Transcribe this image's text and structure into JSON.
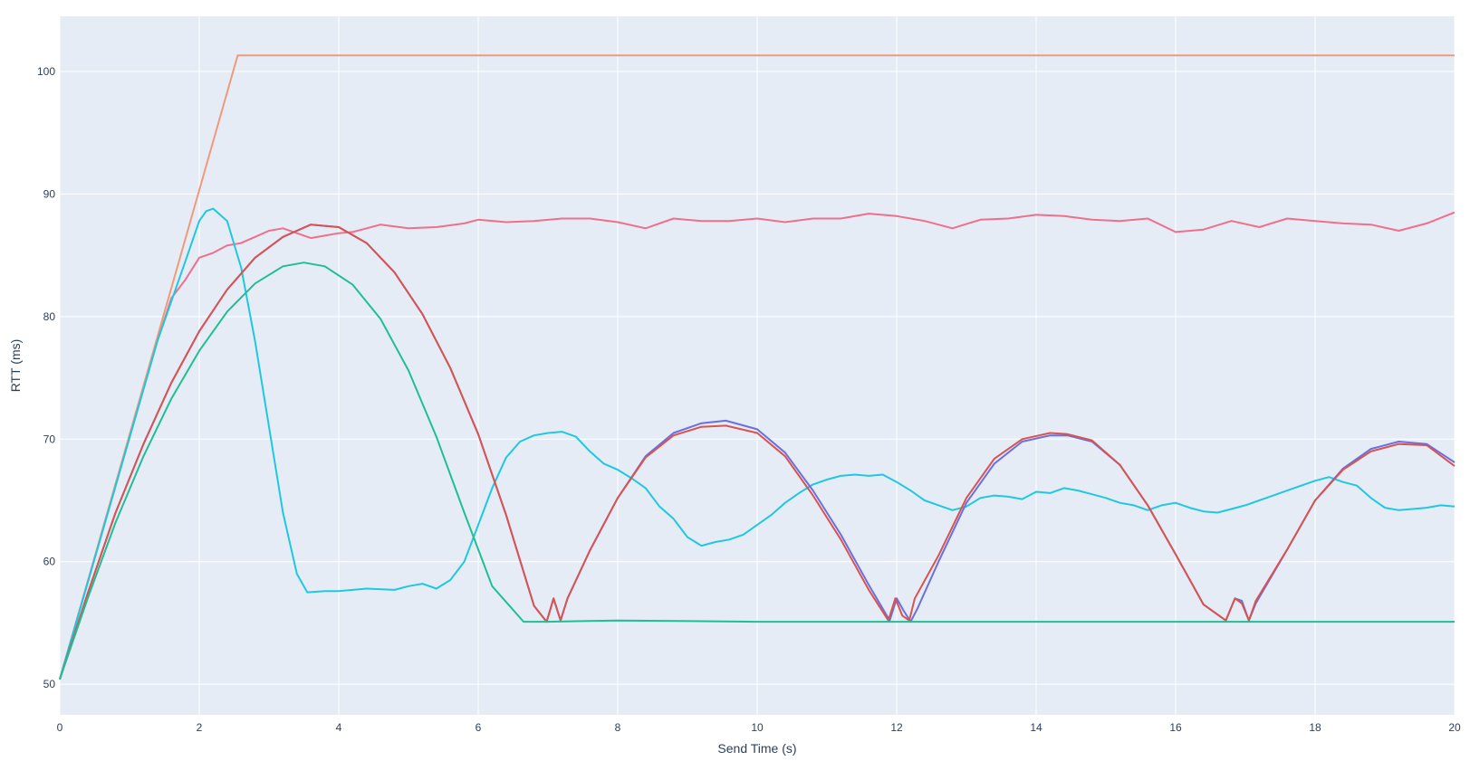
{
  "chart_data": {
    "type": "line",
    "title": "",
    "xlabel": "Send Time (s)",
    "ylabel": "RTT (ms)",
    "xlim": [
      0,
      20
    ],
    "ylim": [
      47.5,
      104.5
    ],
    "xticks": [
      0,
      2,
      4,
      6,
      8,
      10,
      12,
      14,
      16,
      18,
      20
    ],
    "yticks": [
      50,
      60,
      70,
      80,
      90,
      100
    ],
    "grid": true,
    "legend": "none",
    "plot_bg": "#e5ecf6",
    "series": [
      {
        "color": "#ef9a7a",
        "x": [
          0,
          2.55,
          20
        ],
        "y": [
          50.4,
          101.3,
          101.3
        ]
      },
      {
        "color": "#ef6f8c",
        "x": [
          0,
          1.4,
          1.6,
          1.8,
          2.0,
          2.2,
          2.4,
          2.6,
          2.8,
          3.0,
          3.2,
          3.4,
          3.6,
          3.8,
          4.0,
          4.2,
          4.4,
          4.6,
          5.0,
          5.4,
          5.8,
          6.0,
          6.4,
          6.8,
          7.2,
          7.6,
          8.0,
          8.4,
          8.8,
          9.2,
          9.6,
          10.0,
          10.4,
          10.8,
          11.2,
          11.6,
          12.0,
          12.4,
          12.8,
          13.2,
          13.6,
          14.0,
          14.4,
          14.8,
          15.2,
          15.6,
          16.0,
          16.4,
          16.8,
          17.2,
          17.6,
          18.0,
          18.4,
          18.8,
          19.2,
          19.6,
          20.0
        ],
        "y": [
          50.4,
          78.0,
          81.5,
          83.0,
          84.8,
          85.2,
          85.8,
          86.0,
          86.5,
          87.0,
          87.2,
          86.8,
          86.4,
          86.6,
          86.8,
          86.9,
          87.2,
          87.5,
          87.2,
          87.3,
          87.6,
          87.9,
          87.7,
          87.8,
          88.0,
          88.0,
          87.7,
          87.2,
          88.0,
          87.8,
          87.8,
          88.0,
          87.7,
          88.0,
          88.0,
          88.4,
          88.2,
          87.8,
          87.2,
          87.9,
          88.0,
          88.3,
          88.2,
          87.9,
          87.8,
          88.0,
          86.9,
          87.1,
          87.8,
          87.3,
          88.0,
          87.8,
          87.6,
          87.5,
          87.0,
          87.6,
          88.5
        ]
      },
      {
        "color": "#1fc8e0",
        "x": [
          0,
          1.4,
          1.8,
          2.0,
          2.1,
          2.2,
          2.4,
          2.6,
          2.8,
          3.0,
          3.2,
          3.4,
          3.55,
          3.8,
          4.0,
          4.4,
          4.8,
          5.0,
          5.2,
          5.4,
          5.6,
          5.8,
          6.0,
          6.2,
          6.4,
          6.6,
          6.8,
          7.0,
          7.2,
          7.4,
          7.6,
          7.8,
          8.0,
          8.2,
          8.4,
          8.6,
          8.8,
          9.0,
          9.2,
          9.4,
          9.6,
          9.8,
          10.0,
          10.2,
          10.4,
          10.6,
          10.8,
          11.0,
          11.2,
          11.4,
          11.6,
          11.8,
          12.0,
          12.2,
          12.4,
          12.6,
          12.8,
          13.0,
          13.2,
          13.4,
          13.6,
          13.8,
          14.0,
          14.2,
          14.4,
          14.6,
          14.8,
          15.0,
          15.2,
          15.4,
          15.6,
          15.8,
          16.0,
          16.2,
          16.4,
          16.6,
          16.8,
          17.0,
          17.2,
          17.4,
          17.6,
          17.8,
          18.0,
          18.2,
          18.4,
          18.6,
          18.8,
          19.0,
          19.2,
          19.4,
          19.6,
          19.8,
          20.0
        ],
        "y": [
          50.4,
          78.0,
          84.5,
          87.8,
          88.6,
          88.8,
          87.8,
          84.0,
          78.0,
          71.0,
          64.0,
          59.0,
          57.5,
          57.6,
          57.6,
          57.8,
          57.7,
          58.0,
          58.2,
          57.8,
          58.5,
          60.0,
          63.0,
          66.0,
          68.5,
          69.8,
          70.3,
          70.5,
          70.6,
          70.2,
          69.0,
          68.0,
          67.5,
          66.8,
          66.0,
          64.5,
          63.5,
          62.0,
          61.3,
          61.6,
          61.8,
          62.2,
          63.0,
          63.8,
          64.8,
          65.6,
          66.3,
          66.7,
          67.0,
          67.1,
          67.0,
          67.1,
          66.5,
          65.8,
          65.0,
          64.6,
          64.2,
          64.5,
          65.2,
          65.4,
          65.3,
          65.1,
          65.7,
          65.6,
          66.0,
          65.8,
          65.5,
          65.2,
          64.8,
          64.6,
          64.2,
          64.6,
          64.8,
          64.4,
          64.1,
          64.0,
          64.3,
          64.6,
          65.0,
          65.4,
          65.8,
          66.2,
          66.6,
          66.9,
          66.5,
          66.2,
          65.2,
          64.4,
          64.2,
          64.3,
          64.4,
          64.6,
          64.5
        ]
      },
      {
        "color": "#6b6fe0",
        "x": [
          0,
          0.4,
          0.8,
          1.2,
          1.6,
          2.0,
          2.4,
          2.8,
          3.2,
          3.6,
          4.0,
          4.4,
          4.8,
          5.2,
          5.6,
          6.0,
          6.4,
          6.8,
          6.98,
          7.08,
          7.18,
          7.28,
          7.6,
          8.0,
          8.4,
          8.8,
          9.2,
          9.55,
          10.0,
          10.4,
          10.8,
          11.2,
          11.6,
          11.9,
          12.0,
          12.1,
          12.2,
          12.3,
          12.6,
          13.0,
          13.4,
          13.8,
          14.2,
          14.45,
          14.8,
          15.2,
          15.6,
          16.0,
          16.4,
          16.72,
          16.85,
          16.95,
          17.05,
          17.15,
          17.6,
          18.0,
          18.4,
          18.8,
          19.2,
          19.6,
          20.0
        ],
        "y": [
          50.4,
          57.4,
          64.0,
          69.6,
          74.6,
          78.8,
          82.2,
          84.8,
          86.5,
          87.5,
          87.3,
          86.0,
          83.6,
          80.2,
          75.8,
          70.4,
          63.8,
          56.4,
          55.1,
          57.0,
          55.2,
          57.0,
          60.9,
          65.2,
          68.6,
          70.5,
          71.3,
          71.5,
          70.8,
          68.9,
          65.8,
          62.2,
          58.1,
          55.2,
          57.0,
          56.0,
          55.1,
          56.2,
          60.0,
          64.8,
          68.0,
          69.8,
          70.3,
          70.3,
          69.8,
          67.9,
          64.6,
          60.6,
          56.5,
          55.2,
          57.0,
          56.8,
          55.2,
          56.6,
          61.0,
          65.0,
          67.6,
          69.2,
          69.8,
          69.6,
          68.1
        ]
      },
      {
        "color": "#d9534f",
        "x": [
          0,
          0.4,
          0.8,
          1.2,
          1.6,
          2.0,
          2.4,
          2.8,
          3.2,
          3.6,
          4.0,
          4.4,
          4.8,
          5.2,
          5.6,
          6.0,
          6.4,
          6.8,
          6.98,
          7.08,
          7.18,
          7.28,
          7.6,
          8.0,
          8.4,
          8.8,
          9.2,
          9.55,
          10.0,
          10.4,
          10.8,
          11.2,
          11.6,
          11.88,
          11.98,
          12.08,
          12.18,
          12.26,
          12.6,
          13.0,
          13.4,
          13.8,
          14.2,
          14.45,
          14.8,
          15.2,
          15.6,
          16.0,
          16.4,
          16.72,
          16.85,
          16.95,
          17.05,
          17.15,
          17.6,
          18.0,
          18.4,
          18.8,
          19.2,
          19.6,
          20.0
        ],
        "y": [
          50.4,
          57.4,
          64.0,
          69.6,
          74.6,
          78.8,
          82.2,
          84.8,
          86.5,
          87.5,
          87.3,
          86.0,
          83.6,
          80.2,
          75.8,
          70.4,
          63.8,
          56.4,
          55.1,
          57.0,
          55.2,
          57.0,
          60.9,
          65.2,
          68.5,
          70.3,
          71.0,
          71.1,
          70.5,
          68.6,
          65.4,
          61.8,
          57.7,
          55.2,
          57.0,
          55.6,
          55.2,
          57.0,
          60.5,
          65.2,
          68.4,
          70.0,
          70.5,
          70.4,
          69.9,
          67.9,
          64.6,
          60.6,
          56.5,
          55.2,
          57.0,
          56.6,
          55.2,
          56.8,
          61.0,
          65.0,
          67.5,
          69.0,
          69.6,
          69.5,
          67.8
        ]
      },
      {
        "color": "#1fbf93",
        "x": [
          0,
          0.4,
          0.8,
          1.2,
          1.6,
          2.0,
          2.4,
          2.8,
          3.2,
          3.5,
          3.8,
          4.2,
          4.6,
          5.0,
          5.4,
          5.8,
          6.2,
          6.65,
          7.0,
          8.0,
          10.0,
          12.0,
          14.0,
          16.0,
          18.0,
          20.0
        ],
        "y": [
          50.4,
          57.0,
          63.2,
          68.6,
          73.3,
          77.2,
          80.4,
          82.7,
          84.1,
          84.4,
          84.1,
          82.6,
          79.8,
          75.6,
          70.2,
          64.0,
          58.0,
          55.1,
          55.1,
          55.2,
          55.1,
          55.1,
          55.1,
          55.1,
          55.1,
          55.1
        ]
      }
    ]
  }
}
